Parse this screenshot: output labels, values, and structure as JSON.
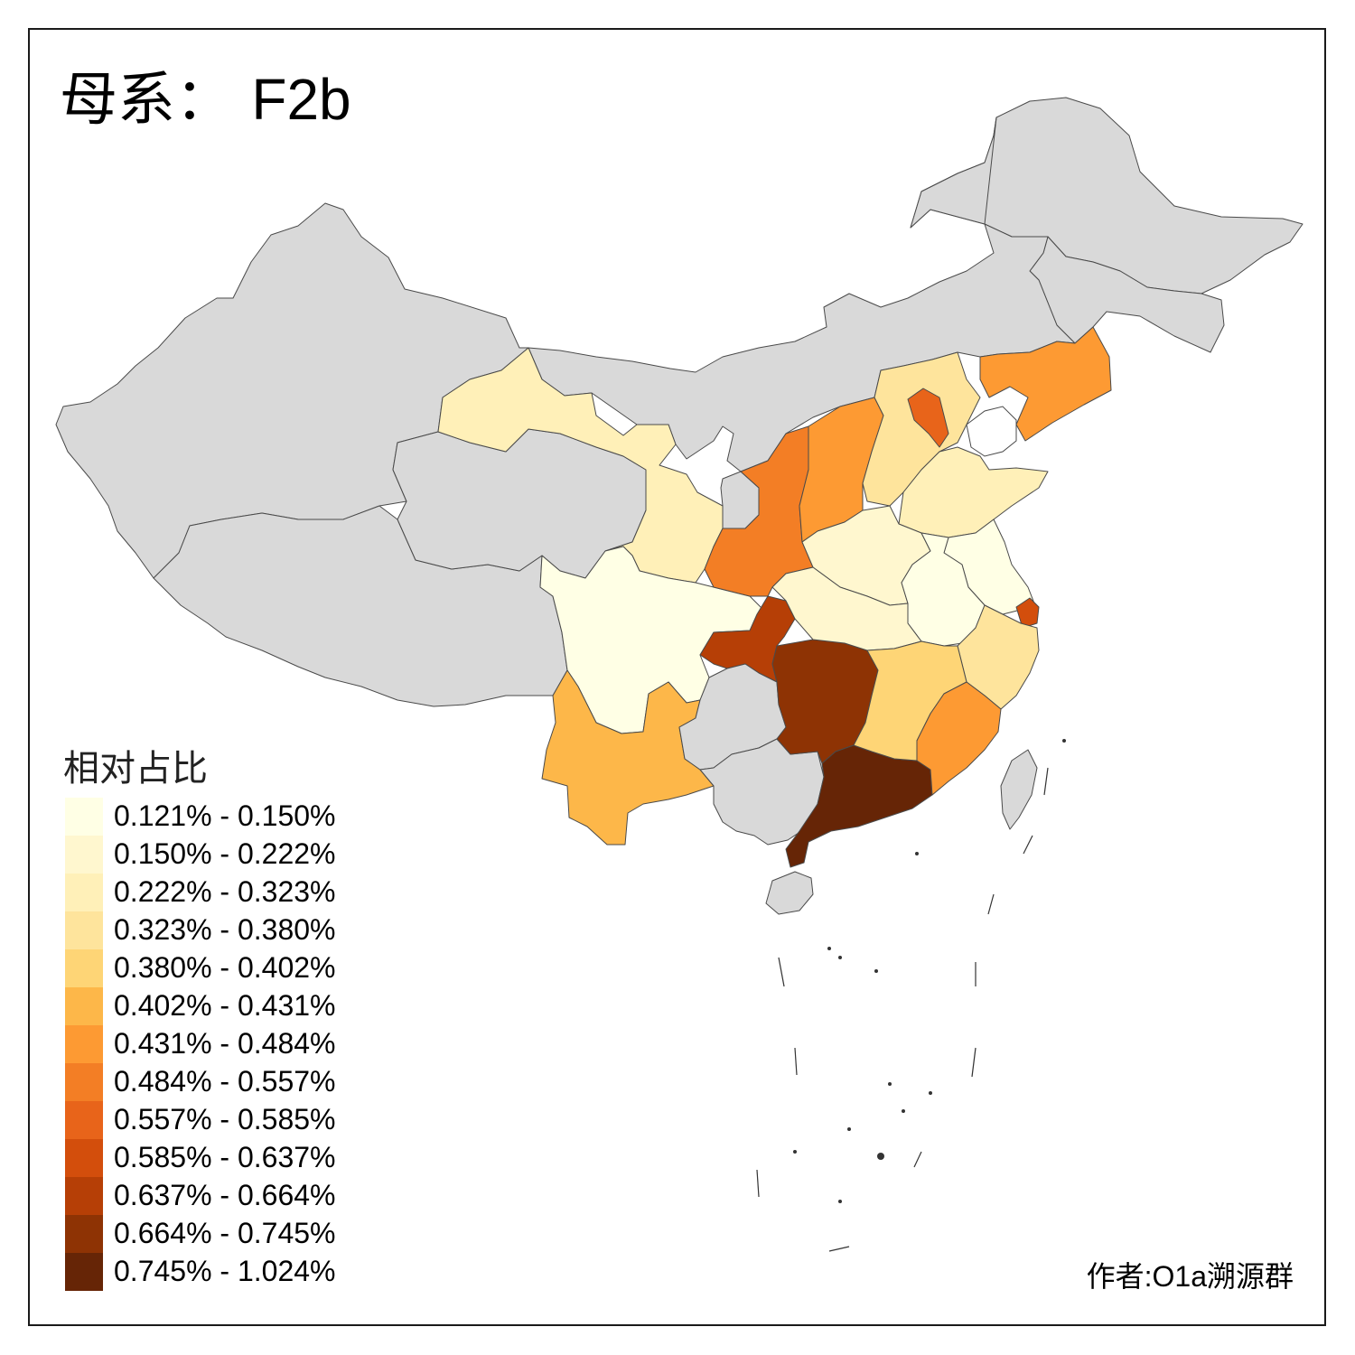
{
  "title": {
    "prefix": "母系：",
    "haplogroup": "F2b"
  },
  "legend": {
    "title": "相对占比",
    "bins": [
      {
        "label": "0.121% - 0.150%",
        "color": "#ffffe5"
      },
      {
        "label": "0.150% - 0.222%",
        "color": "#fff7cf"
      },
      {
        "label": "0.222% - 0.323%",
        "color": "#fff0b8"
      },
      {
        "label": "0.323% - 0.380%",
        "color": "#fee49c"
      },
      {
        "label": "0.380% - 0.402%",
        "color": "#fed576"
      },
      {
        "label": "0.402% - 0.431%",
        "color": "#fdb749"
      },
      {
        "label": "0.431% - 0.484%",
        "color": "#fd9a33"
      },
      {
        "label": "0.484% - 0.557%",
        "color": "#f37e25"
      },
      {
        "label": "0.557% - 0.585%",
        "color": "#e8641a"
      },
      {
        "label": "0.585% - 0.637%",
        "color": "#d34e0c"
      },
      {
        "label": "0.637% - 0.664%",
        "color": "#b63f06"
      },
      {
        "label": "0.664% - 0.745%",
        "color": "#8e3304"
      },
      {
        "label": "0.745% - 1.024%",
        "color": "#662506"
      }
    ]
  },
  "author": "作者:O1a溯源群",
  "map_colors": {
    "no_data": "#d9d9d9",
    "border": "#4a4a4a"
  },
  "regions": [
    {
      "name": "Heilongjiang",
      "bin": null
    },
    {
      "name": "Jilin",
      "bin": null
    },
    {
      "name": "Inner Mongolia",
      "bin": null
    },
    {
      "name": "Xinjiang",
      "bin": null
    },
    {
      "name": "Tibet",
      "bin": null
    },
    {
      "name": "Qinghai",
      "bin": null
    },
    {
      "name": "Ningxia",
      "bin": null
    },
    {
      "name": "Guizhou",
      "bin": null
    },
    {
      "name": "Guangxi",
      "bin": null
    },
    {
      "name": "Hainan",
      "bin": null
    },
    {
      "name": "Taiwan",
      "bin": null
    },
    {
      "name": "Gansu",
      "bin": 2
    },
    {
      "name": "Sichuan",
      "bin": 0
    },
    {
      "name": "Yunnan",
      "bin": 5
    },
    {
      "name": "Shaanxi",
      "bin": 7
    },
    {
      "name": "Shanxi",
      "bin": 6
    },
    {
      "name": "Hebei",
      "bin": 3
    },
    {
      "name": "Beijing",
      "bin": 8
    },
    {
      "name": "Liaoning",
      "bin": 6
    },
    {
      "name": "Shandong",
      "bin": 2
    },
    {
      "name": "Henan",
      "bin": 1
    },
    {
      "name": "Hubei",
      "bin": 1
    },
    {
      "name": "Anhui",
      "bin": 0
    },
    {
      "name": "Jiangsu",
      "bin": 0
    },
    {
      "name": "Shanghai",
      "bin": 9
    },
    {
      "name": "Zhejiang",
      "bin": 3
    },
    {
      "name": "Jiangxi",
      "bin": 4
    },
    {
      "name": "Fujian",
      "bin": 6
    },
    {
      "name": "Hunan",
      "bin": 11
    },
    {
      "name": "Chongqing",
      "bin": 10
    },
    {
      "name": "Guangdong",
      "bin": 12
    }
  ]
}
